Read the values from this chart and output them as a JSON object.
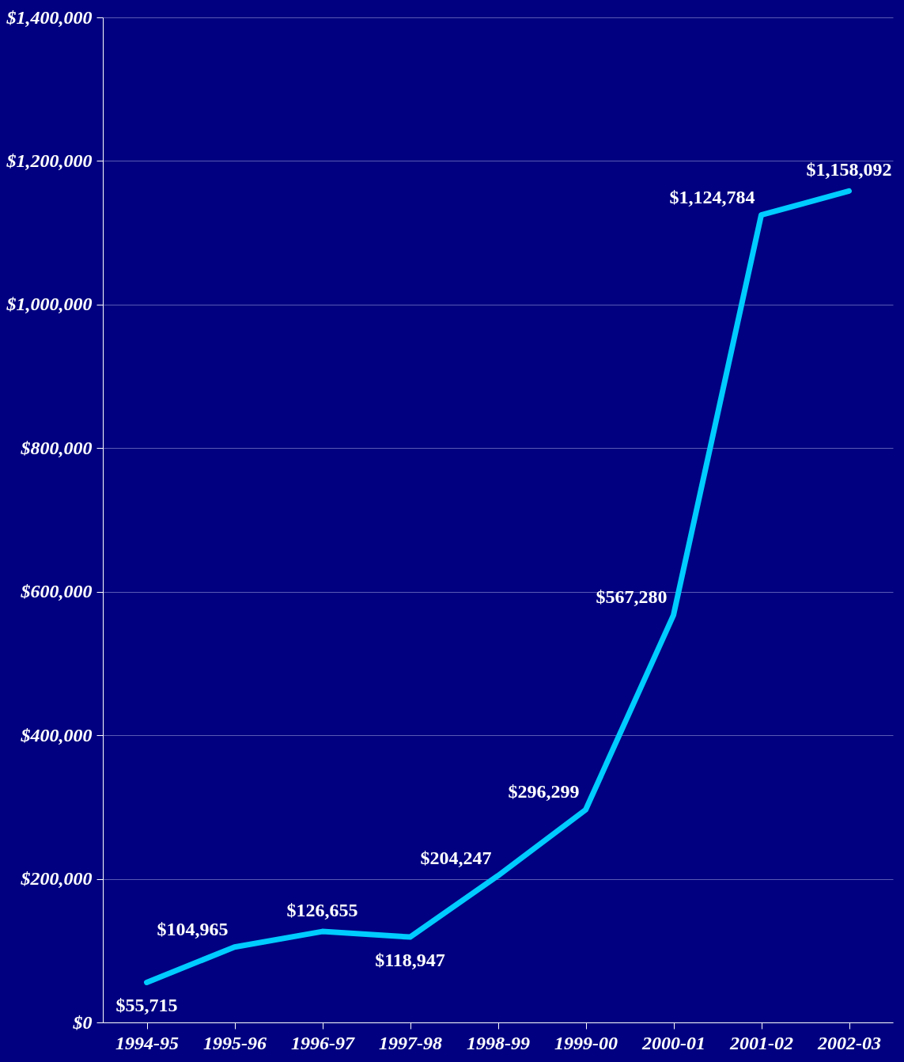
{
  "chart_data": {
    "type": "line",
    "categories": [
      "1994-95",
      "1995-96",
      "1996-97",
      "1997-98",
      "1998-99",
      "1999-00",
      "2000-01",
      "2001-02",
      "2002-03"
    ],
    "series": [
      {
        "color": "#00ccff",
        "values": [
          55715,
          104965,
          126655,
          118947,
          204247,
          296299,
          567280,
          1124784,
          1158092
        ],
        "value_labels": [
          "$55,715",
          "$104,965",
          "$126,655",
          "$118,947",
          "$204,247",
          "$296,299",
          "$567,280",
          "$1,124,784",
          "$1,158,092"
        ]
      }
    ],
    "ylim": [
      0,
      1400000
    ],
    "yticks": [
      {
        "value": 0,
        "label": "$0"
      },
      {
        "value": 200000,
        "label": "$200,000"
      },
      {
        "value": 400000,
        "label": "$400,000"
      },
      {
        "value": 600000,
        "label": "$600,000"
      },
      {
        "value": 800000,
        "label": "$800,000"
      },
      {
        "value": 1000000,
        "label": "$1,000,000"
      },
      {
        "value": 1200000,
        "label": "$1,200,000"
      },
      {
        "value": 1400000,
        "label": "$1,400,000"
      }
    ],
    "grid": "y",
    "legend": false,
    "marker": "none",
    "line_style": "solid"
  }
}
